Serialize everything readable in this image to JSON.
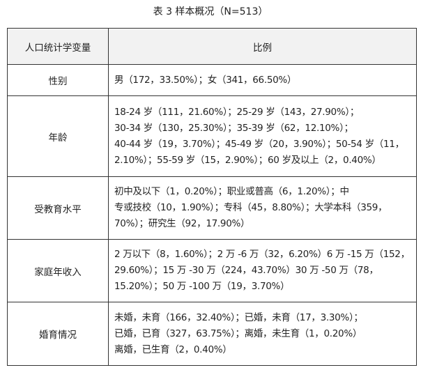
{
  "title": "表 3 样本概况（N=513）",
  "header": [
    "人口统计学变量",
    "比例"
  ],
  "rows": [
    {
      "label": "性别",
      "lines": [
        "男（172，33.50%）；女（341，66.50%）"
      ]
    },
    {
      "label": "年龄",
      "lines": [
        "18-24 岁（111，21.60%）；25-29 岁（143，27.90%）；",
        "30-34 岁（130，25.30%）；35-39 岁（62，12.10%）；",
        "40-44 岁（19，3.70%）；45-49 岁（20，3.90%）；50-54 岁（11，",
        "2.10%）；55-59 岁（15，2.90%）；60 岁及以上（2，0.40%）"
      ]
    },
    {
      "label": "受教育水平",
      "lines": [
        "初中及以下（1，0.20%）；职业或普高（6，1.20%）；中",
        "专或技校（10，1.90%）；专科（45，8.80%）；大学本科（359，",
        "70%）；研究生（92，17.90%）"
      ]
    },
    {
      "label": "家庭年收入",
      "lines": [
        "2 万以下（8，1.60%）；2 万 -6 万（32，6.20%）6 万 -15 万（152，",
        "29.60%）；15 万 -30 万（224，43.70%）30 万 -50 万（78，",
        "15.20%）；50 万 -100 万（19，3.70%）"
      ]
    },
    {
      "label": "婚育情况",
      "lines": [
        "未婚，未育（166，32.40%）；已婚，未育（17，3.30%）；",
        "已婚，已育（327，63.75%）；离婚，未生育（1，0.20%）",
        "离婚，已生育（2，0.40%）"
      ]
    }
  ]
}
